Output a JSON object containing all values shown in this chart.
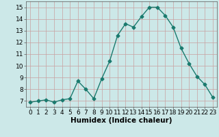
{
  "x": [
    0,
    1,
    2,
    3,
    4,
    5,
    6,
    7,
    8,
    9,
    10,
    11,
    12,
    13,
    14,
    15,
    16,
    17,
    18,
    19,
    20,
    21,
    22,
    23
  ],
  "y": [
    6.9,
    7.0,
    7.1,
    6.9,
    7.1,
    7.2,
    8.7,
    8.0,
    7.2,
    8.9,
    10.4,
    12.6,
    13.6,
    13.3,
    14.2,
    15.0,
    15.0,
    14.3,
    13.3,
    11.5,
    10.2,
    9.1,
    8.4,
    7.3
  ],
  "line_color": "#1a7a6e",
  "marker": "D",
  "markersize": 2.5,
  "linewidth": 1.0,
  "bg_color": "#cce8e8",
  "grid_color": "#b0c8c8",
  "xlabel": "Humidex (Indice chaleur)",
  "xlabel_fontsize": 7.5,
  "tick_fontsize": 6.5,
  "xlim": [
    -0.5,
    23.5
  ],
  "ylim": [
    6.5,
    15.5
  ],
  "yticks": [
    7,
    8,
    9,
    10,
    11,
    12,
    13,
    14,
    15
  ],
  "xticks": [
    0,
    1,
    2,
    3,
    4,
    5,
    6,
    7,
    8,
    9,
    10,
    11,
    12,
    13,
    14,
    15,
    16,
    17,
    18,
    19,
    20,
    21,
    22,
    23
  ]
}
